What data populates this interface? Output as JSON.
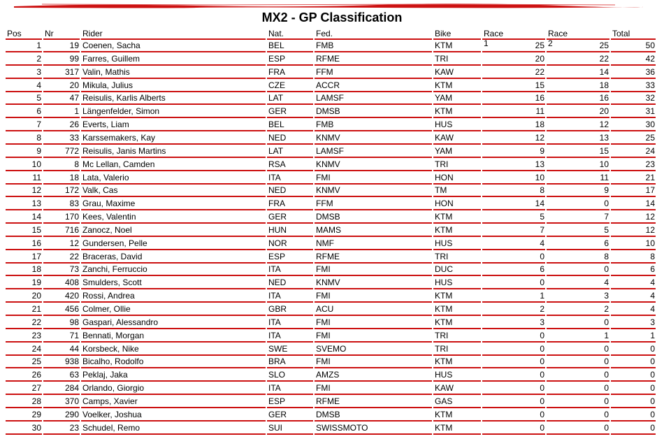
{
  "title": "MX2 - GP Classification",
  "accent_color": "#cc1111",
  "columns": [
    "Pos",
    "Nr",
    "Rider",
    "Nat.",
    "Fed.",
    "Bike",
    "Race 1",
    "Race 2",
    "Total"
  ],
  "rows": [
    [
      "1",
      "19",
      "Coenen, Sacha",
      "BEL",
      "FMB",
      "KTM",
      "25",
      "25",
      "50"
    ],
    [
      "2",
      "99",
      "Farres, Guillem",
      "ESP",
      "RFME",
      "TRI",
      "20",
      "22",
      "42"
    ],
    [
      "3",
      "317",
      "Valin, Mathis",
      "FRA",
      "FFM",
      "KAW",
      "22",
      "14",
      "36"
    ],
    [
      "4",
      "20",
      "Mikula, Julius",
      "CZE",
      "ACCR",
      "KTM",
      "15",
      "18",
      "33"
    ],
    [
      "5",
      "47",
      "Reisulis, Karlis Alberts",
      "LAT",
      "LAMSF",
      "YAM",
      "16",
      "16",
      "32"
    ],
    [
      "6",
      "1",
      "Längenfelder, Simon",
      "GER",
      "DMSB",
      "KTM",
      "11",
      "20",
      "31"
    ],
    [
      "7",
      "26",
      "Everts, Liam",
      "BEL",
      "FMB",
      "HUS",
      "18",
      "12",
      "30"
    ],
    [
      "8",
      "33",
      "Karssemakers, Kay",
      "NED",
      "KNMV",
      "KAW",
      "12",
      "13",
      "25"
    ],
    [
      "9",
      "772",
      "Reisulis, Janis Martins",
      "LAT",
      "LAMSF",
      "YAM",
      "9",
      "15",
      "24"
    ],
    [
      "10",
      "8",
      "Mc Lellan, Camden",
      "RSA",
      "KNMV",
      "TRI",
      "13",
      "10",
      "23"
    ],
    [
      "11",
      "18",
      "Lata, Valerio",
      "ITA",
      "FMI",
      "HON",
      "10",
      "11",
      "21"
    ],
    [
      "12",
      "172",
      "Valk, Cas",
      "NED",
      "KNMV",
      "TM",
      "8",
      "9",
      "17"
    ],
    [
      "13",
      "83",
      "Grau, Maxime",
      "FRA",
      "FFM",
      "HON",
      "14",
      "0",
      "14"
    ],
    [
      "14",
      "170",
      "Kees, Valentin",
      "GER",
      "DMSB",
      "KTM",
      "5",
      "7",
      "12"
    ],
    [
      "15",
      "716",
      "Zanocz, Noel",
      "HUN",
      "MAMS",
      "KTM",
      "7",
      "5",
      "12"
    ],
    [
      "16",
      "12",
      "Gundersen, Pelle",
      "NOR",
      "NMF",
      "HUS",
      "4",
      "6",
      "10"
    ],
    [
      "17",
      "22",
      "Braceras, David",
      "ESP",
      "RFME",
      "TRI",
      "0",
      "8",
      "8"
    ],
    [
      "18",
      "73",
      "Zanchi, Ferruccio",
      "ITA",
      "FMI",
      "DUC",
      "6",
      "0",
      "6"
    ],
    [
      "19",
      "408",
      "Smulders, Scott",
      "NED",
      "KNMV",
      "HUS",
      "0",
      "4",
      "4"
    ],
    [
      "20",
      "420",
      "Rossi, Andrea",
      "ITA",
      "FMI",
      "KTM",
      "1",
      "3",
      "4"
    ],
    [
      "21",
      "456",
      "Colmer, Ollie",
      "GBR",
      "ACU",
      "KTM",
      "2",
      "2",
      "4"
    ],
    [
      "22",
      "98",
      "Gaspari, Alessandro",
      "ITA",
      "FMI",
      "KTM",
      "3",
      "0",
      "3"
    ],
    [
      "23",
      "71",
      "Bennati, Morgan",
      "ITA",
      "FMI",
      "TRI",
      "0",
      "1",
      "1"
    ],
    [
      "24",
      "44",
      "Korsbeck, Nike",
      "SWE",
      "SVEMO",
      "TRI",
      "0",
      "0",
      "0"
    ],
    [
      "25",
      "938",
      "Bicalho, Rodolfo",
      "BRA",
      "FMI",
      "KTM",
      "0",
      "0",
      "0"
    ],
    [
      "26",
      "63",
      "Peklaj, Jaka",
      "SLO",
      "AMZS",
      "HUS",
      "0",
      "0",
      "0"
    ],
    [
      "27",
      "284",
      "Orlando, Giorgio",
      "ITA",
      "FMI",
      "KAW",
      "0",
      "0",
      "0"
    ],
    [
      "28",
      "370",
      "Camps, Xavier",
      "ESP",
      "RFME",
      "GAS",
      "0",
      "0",
      "0"
    ],
    [
      "29",
      "290",
      "Voelker, Joshua",
      "GER",
      "DMSB",
      "KTM",
      "0",
      "0",
      "0"
    ],
    [
      "30",
      "23",
      "Schudel, Remo",
      "SUI",
      "SWISSMOTO",
      "KTM",
      "0",
      "0",
      "0"
    ]
  ]
}
